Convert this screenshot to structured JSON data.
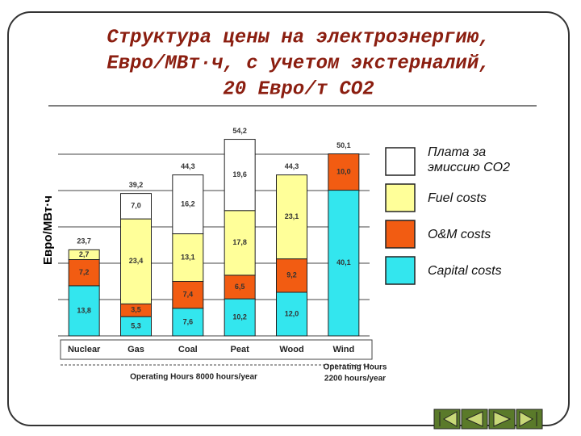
{
  "chart_data": {
    "type": "stacked_bar",
    "title_lines": [
      "Структура цены на электроэнергию,",
      "Евро/МВт·ч, с учетом экстерналий,",
      "20 Евро/т CO2"
    ],
    "y_label": "Евро/МВт·ч",
    "categories": [
      "Nuclear",
      "Gas",
      "Coal",
      "Peat",
      "Wood",
      "Wind"
    ],
    "series": [
      {
        "name": "Capital costs",
        "color": "#33e6ee",
        "values": [
          13.8,
          5.3,
          7.6,
          10.2,
          12.0,
          40.1
        ],
        "value_labels": [
          "13,8",
          "5,3",
          "7,6",
          "10,2",
          "12,0",
          "40,1"
        ]
      },
      {
        "name": "O&M costs",
        "color": "#f25c12",
        "values": [
          7.2,
          3.5,
          7.4,
          6.5,
          9.2,
          10.0
        ],
        "value_labels": [
          "7,2",
          "3,5",
          "7,4",
          "6,5",
          "9,2",
          "10,0"
        ]
      },
      {
        "name": "Fuel costs",
        "color": "#ffff99",
        "values": [
          2.7,
          23.4,
          13.1,
          17.8,
          23.1,
          null
        ],
        "value_labels": [
          "2,7",
          "23,4",
          "13,1",
          "17,8",
          "23,1",
          null
        ]
      },
      {
        "name": "Плата за эмиссию CO2",
        "color": "#ffffff",
        "values": [
          null,
          7.0,
          16.2,
          19.6,
          null,
          null
        ],
        "value_labels": [
          null,
          "7,0",
          "16,2",
          "19,6",
          null,
          null
        ]
      }
    ],
    "totals": [
      23.7,
      39.2,
      44.3,
      54.2,
      44.3,
      50.1
    ],
    "total_labels": [
      "23,7",
      "39,2",
      "44,3",
      "54,2",
      "44,3",
      "50,1"
    ],
    "note_left": "Operating Hours 8000 hours/year",
    "note_right_lines": [
      "Operating Hours",
      "2200 hours/year"
    ],
    "ylim": [
      0,
      60
    ],
    "yticks": [
      0,
      10,
      20,
      30,
      40,
      50
    ],
    "grid": true
  }
}
